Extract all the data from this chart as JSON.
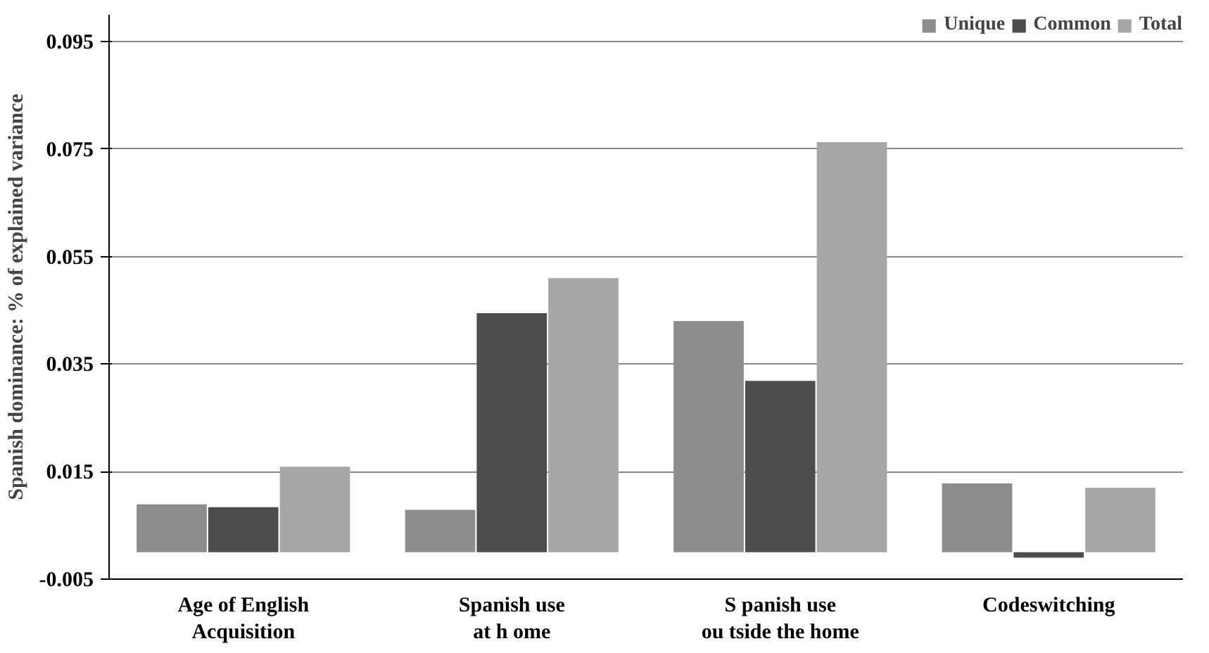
{
  "chart_data": {
    "type": "bar",
    "ylabel": "Spanish dominance: % of explained variance",
    "categories": [
      "Age of English\nAcquisition",
      "Spanish use\nat h ome",
      "S panish use\nou tside the home",
      "Codeswitching"
    ],
    "series": [
      {
        "name": "Unique",
        "color": "#8c8c8c",
        "values": [
          0.0089,
          0.0079,
          0.043,
          0.0128
        ]
      },
      {
        "name": "Common",
        "color": "#4d4d4d",
        "values": [
          0.0084,
          0.0445,
          0.0319,
          -0.001
        ]
      },
      {
        "name": "Total",
        "color": "#a6a6a6",
        "values": [
          0.0159,
          0.051,
          0.0763,
          0.012
        ]
      }
    ],
    "ylim": [
      -0.005,
      0.1
    ],
    "yticks": [
      -0.005,
      0.015,
      0.035,
      0.055,
      0.075,
      0.095
    ],
    "grid": "y",
    "legend": "top right"
  }
}
